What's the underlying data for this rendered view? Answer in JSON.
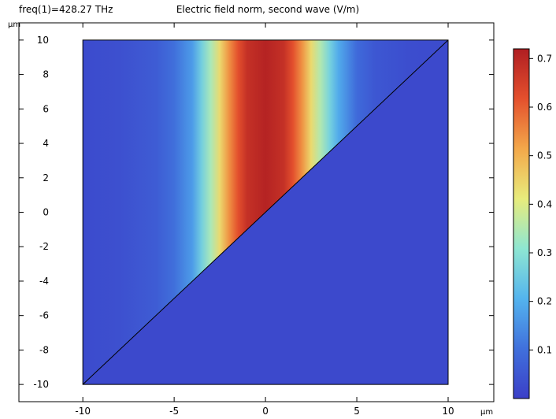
{
  "header": {
    "freq_label": "freq(1)=428.27 THz",
    "title": "Electric field norm, second wave (V/m)"
  },
  "axes": {
    "x_unit": "µm",
    "y_unit": "µm"
  },
  "chart_data": {
    "type": "heatmap",
    "title": "Electric field norm, second wave (V/m)",
    "subtitle": "freq(1)=428.27 THz",
    "xlabel": "µm",
    "ylabel": "µm",
    "xlim": [
      -13.5,
      12.5
    ],
    "ylim": [
      -11,
      11
    ],
    "x_ticks": [
      -10,
      -5,
      0,
      5,
      10
    ],
    "y_ticks": [
      10,
      8,
      6,
      4,
      2,
      0,
      -2,
      -4,
      -6,
      -8,
      -10
    ],
    "domain_x": [
      -10,
      10
    ],
    "domain_y": [
      -10,
      10
    ],
    "diagonal_line": {
      "from": [
        -10,
        -10
      ],
      "to": [
        10,
        10
      ]
    },
    "field_profile_upper_region": {
      "x": [
        -10,
        -8,
        -6,
        -5,
        -4,
        -3.5,
        -3,
        -2.5,
        -2,
        -1.5,
        -1,
        0,
        1,
        1.5,
        2,
        2.5,
        3,
        3.5,
        4,
        5,
        6,
        8,
        10
      ],
      "value": [
        0.025,
        0.035,
        0.06,
        0.1,
        0.17,
        0.26,
        0.34,
        0.44,
        0.54,
        0.62,
        0.68,
        0.71,
        0.68,
        0.62,
        0.54,
        0.44,
        0.35,
        0.27,
        0.19,
        0.09,
        0.05,
        0.03,
        0.025
      ]
    },
    "lower_region_value": 0.02,
    "colorbar": {
      "min": 0.0,
      "max": 0.72,
      "ticks": [
        0.1,
        0.2,
        0.3,
        0.4,
        0.5,
        0.6,
        0.7
      ],
      "colors": [
        "#3b3fc8",
        "#4070dc",
        "#54b4ee",
        "#8ee6d2",
        "#e8ec7c",
        "#f3a84a",
        "#e4502d",
        "#b01e22"
      ]
    }
  }
}
